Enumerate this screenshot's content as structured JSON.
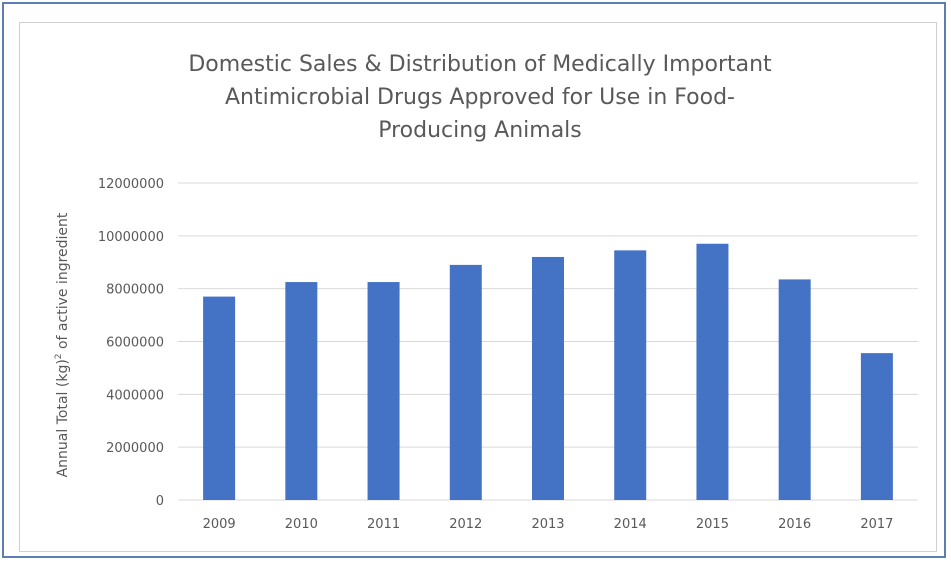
{
  "chart_data": {
    "type": "bar",
    "title_lines": [
      "Domestic Sales & Distribution of Medically Important",
      "Antimicrobial Drugs Approved for Use in Food-",
      "Producing Animals"
    ],
    "xlabel": "",
    "ylabel": "Annual Total (kg)",
    "ylabel_superscript": "2",
    "ylabel_suffix": " of active ingredient",
    "categories": [
      "2009",
      "2010",
      "2011",
      "2012",
      "2013",
      "2014",
      "2015",
      "2016",
      "2017"
    ],
    "values": [
      7700000,
      8250000,
      8250000,
      8900000,
      9200000,
      9450000,
      9700000,
      8350000,
      5560000
    ],
    "ylim": [
      0,
      12000000
    ],
    "yticks": [
      "0",
      "2000000",
      "4000000",
      "6000000",
      "8000000",
      "10000000",
      "12000000"
    ],
    "grid": true,
    "legend": "none",
    "bar_color": "#4472c4",
    "grid_color": "#d9d9d9",
    "frame_color": "#5b7fb0"
  }
}
